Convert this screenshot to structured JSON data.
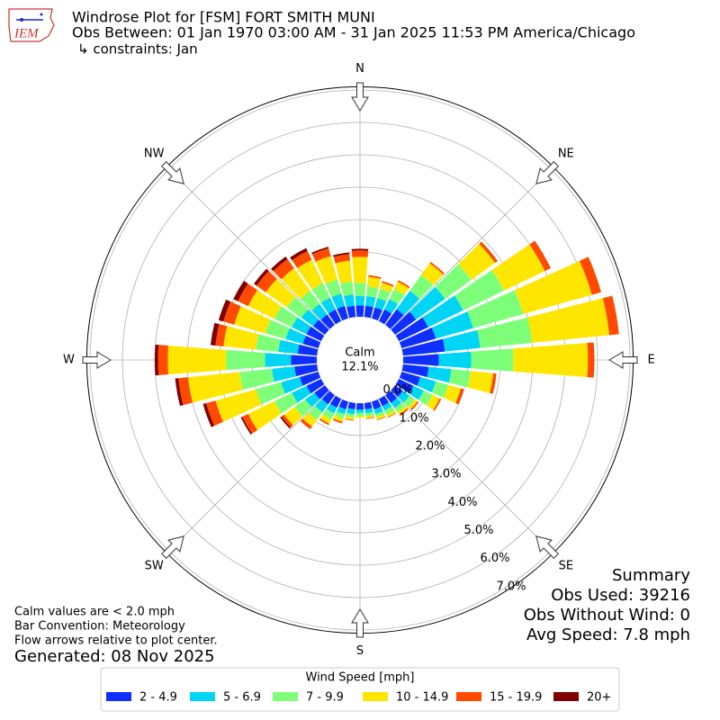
{
  "chart_data": {
    "type": "windrose",
    "title": "Windrose Plot for [FSM] FORT SMITH MUNI",
    "subtitle": "Obs Between: 01 Jan 1970 03:00 AM - 31 Jan 2025 11:53 PM America/Chicago",
    "constraints": "↳ constraints: Jan",
    "logo_text": "IEM",
    "direction_labels": [
      "N",
      "NE",
      "E",
      "SE",
      "S",
      "SW",
      "W",
      "NW"
    ],
    "calm_label": "Calm",
    "calm_value_label": "12.1%",
    "ylim": [
      0,
      7.1
    ],
    "yticks": [
      {
        "value": 0,
        "label": "0.0%"
      },
      {
        "value": 1,
        "label": "1.0%"
      },
      {
        "value": 2,
        "label": "2.0%"
      },
      {
        "value": 3,
        "label": "3.0%"
      },
      {
        "value": 4,
        "label": "4.0%"
      },
      {
        "value": 5,
        "label": "5.0%"
      },
      {
        "value": 6,
        "label": "6.0%"
      },
      {
        "value": 7,
        "label": "7.0%"
      }
    ],
    "grid": true,
    "legend_title": "Wind Speed [mph]",
    "series": [
      {
        "name": "2 - 4.9",
        "color": "#0f2fff",
        "values": [
          0.35,
          0.35,
          0.35,
          0.4,
          0.6,
          0.8,
          1.0,
          1.1,
          1.3,
          1.1,
          0.8,
          0.6,
          0.5,
          0.3,
          0.3,
          0.25,
          0.25,
          0.2,
          0.2,
          0.2,
          0.25,
          0.3,
          0.35,
          0.4,
          0.5,
          0.6,
          0.7,
          0.8,
          0.6,
          0.5,
          0.5,
          0.45,
          0.4,
          0.4,
          0.4,
          0.35
        ]
      },
      {
        "name": "5 - 6.9",
        "color": "#00d5f5",
        "values": [
          0.3,
          0.3,
          0.3,
          0.35,
          0.7,
          1.1,
          1.2,
          1.2,
          1.1,
          1.0,
          0.7,
          0.5,
          0.35,
          0.25,
          0.2,
          0.15,
          0.15,
          0.12,
          0.1,
          0.15,
          0.15,
          0.2,
          0.3,
          0.35,
          0.5,
          0.6,
          0.7,
          0.8,
          0.6,
          0.55,
          0.5,
          0.45,
          0.4,
          0.4,
          0.4,
          0.35
        ]
      },
      {
        "name": "7 - 9.9",
        "color": "#7dff7a",
        "values": [
          0.4,
          0.3,
          0.3,
          0.35,
          0.6,
          1.0,
          1.4,
          1.6,
          1.6,
          1.3,
          0.6,
          0.4,
          0.3,
          0.2,
          0.15,
          0.15,
          0.1,
          0.1,
          0.1,
          0.1,
          0.15,
          0.2,
          0.3,
          0.4,
          0.6,
          0.8,
          1.0,
          1.2,
          0.7,
          0.65,
          0.6,
          0.55,
          0.5,
          0.5,
          0.45,
          0.4
        ]
      },
      {
        "name": "10 - 14.9",
        "color": "#ffe600",
        "values": [
          0.8,
          0.3,
          0.2,
          0.25,
          0.45,
          0.9,
          1.4,
          2.2,
          2.4,
          2.3,
          0.7,
          0.4,
          0.25,
          0.1,
          0.1,
          0.08,
          0.08,
          0.06,
          0.05,
          0.08,
          0.1,
          0.15,
          0.25,
          0.4,
          0.9,
          1.3,
          1.6,
          1.8,
          1.0,
          1.0,
          0.9,
          0.8,
          0.85,
          0.8,
          0.75,
          0.65
        ]
      },
      {
        "name": "15 - 19.9",
        "color": "#ff4a00",
        "values": [
          0.2,
          0.05,
          0.05,
          0.05,
          0.05,
          0.1,
          0.2,
          0.3,
          0.3,
          0.2,
          0.1,
          0.1,
          0.05,
          0.05,
          0.05,
          0.02,
          0.02,
          0.02,
          0,
          0.02,
          0.05,
          0.05,
          0.1,
          0.1,
          0.2,
          0.3,
          0.3,
          0.3,
          0.25,
          0.35,
          0.35,
          0.35,
          0.35,
          0.3,
          0.25,
          0.2
        ]
      },
      {
        "name": "20+",
        "color": "#800000",
        "values": [
          0.05,
          0,
          0,
          0,
          0,
          0,
          0,
          0,
          0,
          0,
          0,
          0,
          0,
          0,
          0,
          0,
          0,
          0,
          0,
          0,
          0,
          0,
          0,
          0.05,
          0.05,
          0.1,
          0.1,
          0.1,
          0.15,
          0.15,
          0.15,
          0.1,
          0.1,
          0.1,
          0.05,
          0.05
        ]
      }
    ]
  },
  "annotations": {
    "notes": [
      "Calm values are < 2.0 mph",
      "Bar Convention: Meteorology",
      "Flow arrows relative to plot center."
    ],
    "generated": "Generated: 08 Nov 2025",
    "summary": [
      "Summary",
      "Obs Used: 39216",
      "Obs Without Wind: 0",
      "Avg Speed: 7.8 mph"
    ]
  }
}
